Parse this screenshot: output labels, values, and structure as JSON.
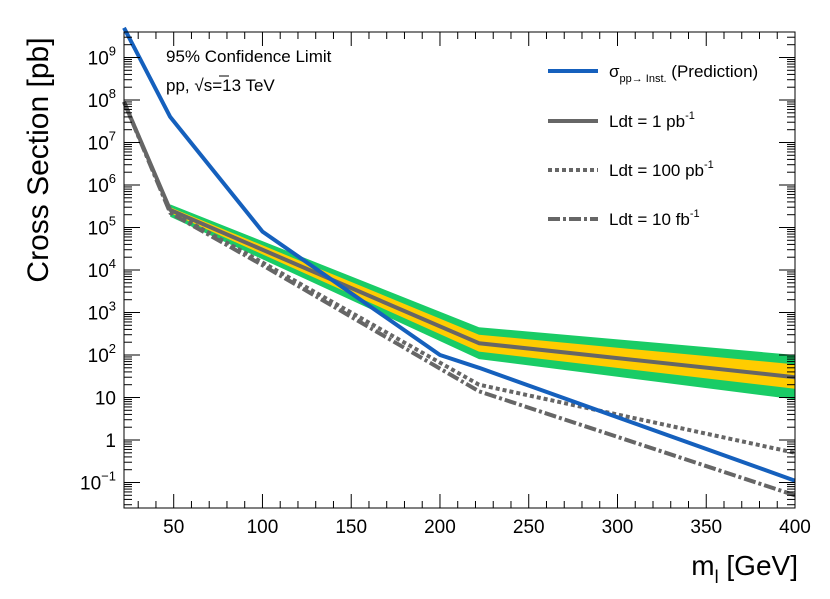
{
  "chart_data": {
    "type": "line",
    "title": "",
    "xlabel": "m",
    "xlabel_sub": "l",
    "xlabel_units": "[GeV]",
    "ylabel": "Cross Section [pb]",
    "xscale": "linear",
    "yscale": "log",
    "xlim": [
      22,
      400
    ],
    "ylim_log10": [
      -1.6,
      9.6
    ],
    "x_ticks": [
      50,
      100,
      150,
      200,
      250,
      300,
      350,
      400
    ],
    "x_tick_labels": [
      "50",
      "100",
      "150",
      "200",
      "250",
      "300",
      "350",
      "400"
    ],
    "y_ticks": [
      {
        "base": "10",
        "exp": "9",
        "value": 9
      },
      {
        "base": "10",
        "exp": "8",
        "value": 8
      },
      {
        "base": "10",
        "exp": "7",
        "value": 7
      },
      {
        "base": "10",
        "exp": "6",
        "value": 6
      },
      {
        "base": "10",
        "exp": "5",
        "value": 5
      },
      {
        "base": "10",
        "exp": "4",
        "value": 4
      },
      {
        "base": "10",
        "exp": "3",
        "value": 3
      },
      {
        "base": "10",
        "exp": "2",
        "value": 2
      },
      {
        "base": "10",
        "exp": "",
        "value": 1
      },
      {
        "base": "1",
        "exp": "",
        "value": 0
      },
      {
        "base": "10",
        "exp": "−1",
        "value": -1
      }
    ],
    "annotations": {
      "line1": "95% Confidence Limit",
      "line2_prefix": "pp, ",
      "line2_sqrt": "√",
      "line2_rest": "s=13 TeV"
    },
    "bands": {
      "outer_color": "#19cc66",
      "inner_color": "#ffcc00",
      "outer_upper": [
        {
          "x": 48,
          "y": 350000.0
        },
        {
          "x": 222,
          "y": 450.0
        },
        {
          "x": 400,
          "y": 100
        }
      ],
      "outer_lower": [
        {
          "x": 48,
          "y": 180000.0
        },
        {
          "x": 222,
          "y": 80
        },
        {
          "x": 400,
          "y": 9
        }
      ],
      "inner_upper": [
        {
          "x": 48,
          "y": 300000.0
        },
        {
          "x": 222,
          "y": 300.0
        },
        {
          "x": 400,
          "y": 60
        }
      ],
      "inner_lower": [
        {
          "x": 48,
          "y": 220000.0
        },
        {
          "x": 222,
          "y": 120.0
        },
        {
          "x": 400,
          "y": 16
        }
      ]
    },
    "series": [
      {
        "name": "σ",
        "legend_sub": "pp→ Inst.",
        "legend_rest": " (Prediction)",
        "color": "#1560bd",
        "style": "solid",
        "points": [
          {
            "x": 22,
            "y": 5000000000.0
          },
          {
            "x": 48,
            "y": 40000000.0
          },
          {
            "x": 100,
            "y": 80000.0
          },
          {
            "x": 200,
            "y": 100
          },
          {
            "x": 222,
            "y": 50
          },
          {
            "x": 400,
            "y": 0.11
          }
        ]
      },
      {
        "name": "Ldt = 1 pb",
        "legend_sup": "-1",
        "color": "#666666",
        "style": "solid",
        "points": [
          {
            "x": 22,
            "y": 90000000.0
          },
          {
            "x": 48,
            "y": 260000.0
          },
          {
            "x": 222,
            "y": 190.0
          },
          {
            "x": 400,
            "y": 30
          }
        ]
      },
      {
        "name": "Ldt = 100 pb",
        "legend_sup": "-1",
        "color": "#666666",
        "style": "dotted",
        "points": [
          {
            "x": 22,
            "y": 90000000.0
          },
          {
            "x": 48,
            "y": 240000.0
          },
          {
            "x": 100,
            "y": 15000.0
          },
          {
            "x": 222,
            "y": 20
          },
          {
            "x": 400,
            "y": 0.5
          }
        ]
      },
      {
        "name": "Ldt = 10 fb",
        "legend_sup": "-1",
        "color": "#666666",
        "style": "dashdot",
        "points": [
          {
            "x": 22,
            "y": 90000000.0
          },
          {
            "x": 48,
            "y": 220000.0
          },
          {
            "x": 100,
            "y": 13000.0
          },
          {
            "x": 222,
            "y": 14
          },
          {
            "x": 400,
            "y": 0.05
          }
        ]
      }
    ]
  }
}
